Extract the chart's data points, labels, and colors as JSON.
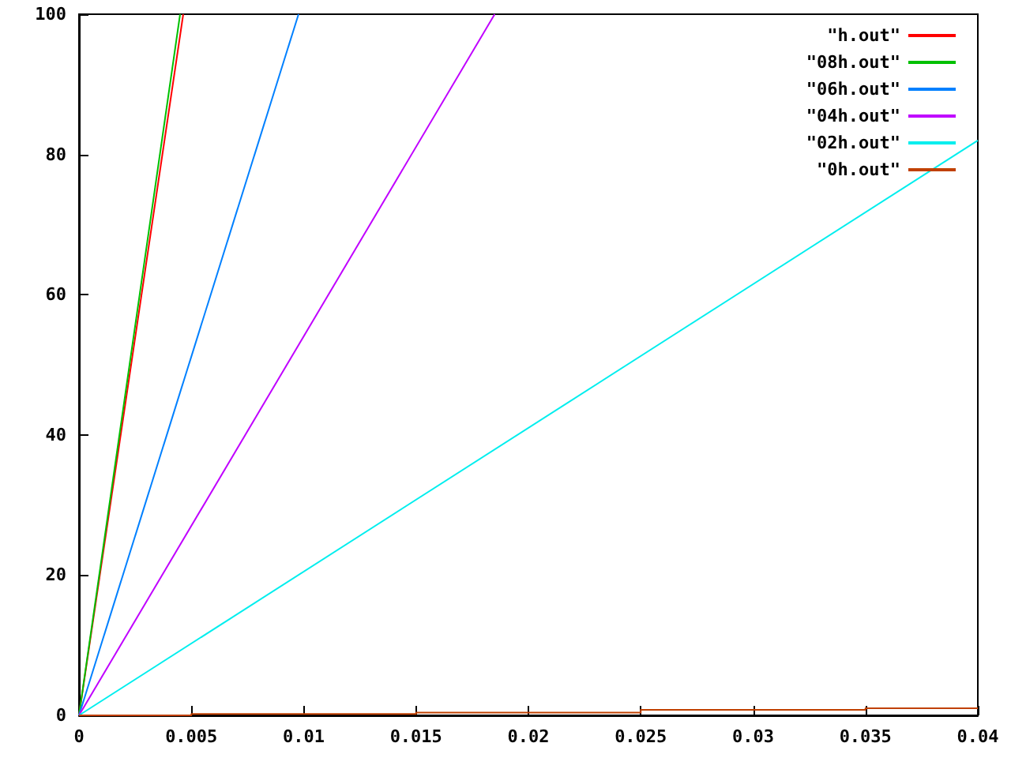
{
  "chart_data": {
    "type": "line",
    "xlim": [
      0,
      0.04
    ],
    "ylim": [
      0,
      100
    ],
    "xticks": [
      0,
      0.005,
      0.01,
      0.015,
      0.02,
      0.025,
      0.03,
      0.035,
      0.04
    ],
    "yticks": [
      0,
      20,
      40,
      60,
      80,
      100
    ],
    "grid": false,
    "legend": "top right",
    "marker": "none",
    "line_style": "solid",
    "series": [
      {
        "name": "\"h.out\"",
        "color": "#ff0000",
        "x": [
          0,
          0.00464
        ],
        "values": [
          0,
          100
        ]
      },
      {
        "name": "\"08h.out\"",
        "color": "#00c000",
        "x": [
          0,
          0.0045
        ],
        "values": [
          0,
          100
        ]
      },
      {
        "name": "\"06h.out\"",
        "color": "#0080ff",
        "x": [
          0,
          0.00977
        ],
        "values": [
          0,
          100
        ]
      },
      {
        "name": "\"04h.out\"",
        "color": "#c000ff",
        "x": [
          0,
          0.0185
        ],
        "values": [
          0,
          100
        ]
      },
      {
        "name": "\"02h.out\"",
        "color": "#00eeee",
        "x": [
          0,
          0.04
        ],
        "values": [
          0,
          82
        ]
      },
      {
        "name": "\"0h.out\"",
        "color": "#c04000",
        "type": "step",
        "x": [
          0,
          0.005,
          0.015,
          0.025,
          0.035,
          0.04
        ],
        "values": [
          0,
          0.2,
          0.4,
          0.8,
          1,
          1
        ]
      }
    ]
  }
}
